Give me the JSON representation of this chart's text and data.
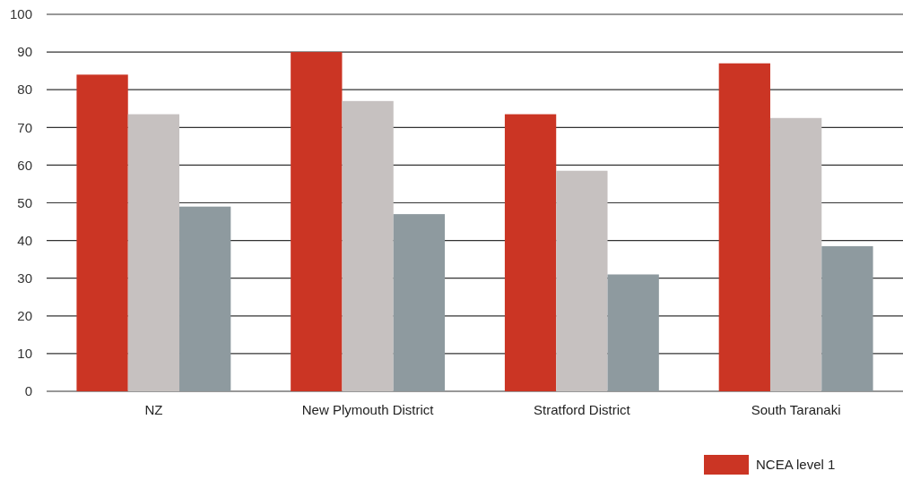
{
  "chart_data": {
    "type": "bar",
    "categories": [
      "NZ",
      "New Plymouth District",
      "Stratford District",
      "South Taranaki"
    ],
    "series": [
      {
        "name": "NCEA level 1",
        "color": "#cb3524",
        "values": [
          84,
          90,
          73.5,
          87
        ]
      },
      {
        "color": "#c6c1c0",
        "values": [
          73.5,
          77,
          58.5,
          72.5
        ]
      },
      {
        "color": "#8e9a9f",
        "values": [
          49,
          47,
          31,
          38.5
        ]
      }
    ],
    "ylim": [
      0,
      100
    ],
    "yticks": [
      0,
      10,
      20,
      30,
      40,
      50,
      60,
      70,
      80,
      90,
      100
    ],
    "grid": "y",
    "legend": "bottom right"
  }
}
